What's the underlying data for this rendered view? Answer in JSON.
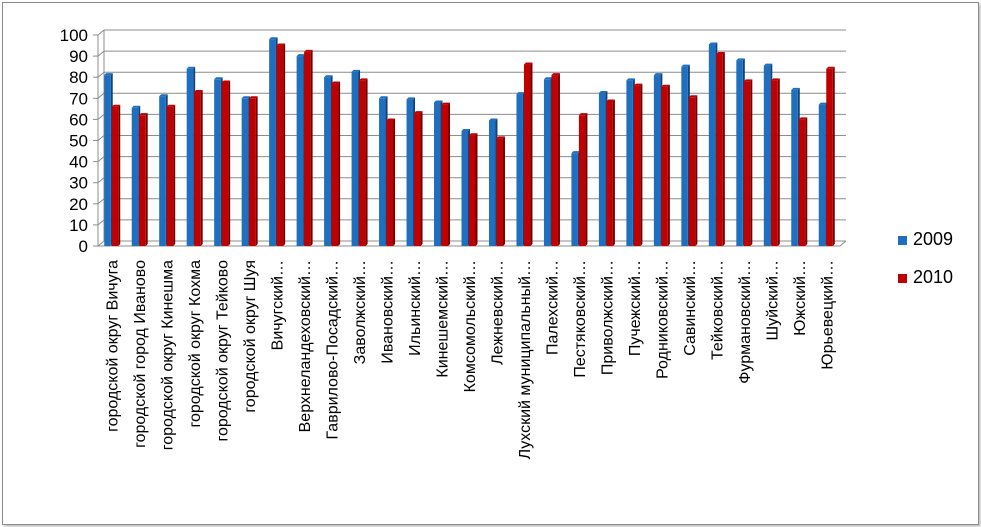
{
  "chart_data": {
    "type": "bar",
    "title": "",
    "xlabel": "",
    "ylabel": "",
    "ylim": [
      0,
      100
    ],
    "yticks": [
      0,
      10,
      20,
      30,
      40,
      50,
      60,
      70,
      80,
      90,
      100
    ],
    "grid": true,
    "legend_position": "right",
    "categories": [
      "городской округ Вичуга",
      "городской город Иваново",
      "городской округ Кинешма",
      "городской округ Кохма",
      "городской округ Тейково",
      "городской округ Шуя",
      "Вичугский…",
      "Верхнеландеховский…",
      "Гаврилово-Посадский…",
      "Заволжский…",
      "Ивановский…",
      "Ильинский…",
      "Кинешемский…",
      "Комсомольский…",
      "Лежневский…",
      "Лухский муниципальный…",
      "Палехский…",
      "Пестяковский…",
      "Приволжский…",
      "Пучежский…",
      "Родниковский…",
      "Савинский…",
      "Тейковский…",
      "Фурмановский…",
      "Шуйский…",
      "Южский…",
      "Юрьевецкий…"
    ],
    "series": [
      {
        "name": "2009",
        "color": "#1f6fc1",
        "values": [
          81,
          65.5,
          71,
          84,
          79,
          70,
          98,
          90,
          80,
          82.5,
          70,
          69.5,
          68,
          54.5,
          59.5,
          72,
          79,
          44,
          72.5,
          78.5,
          81,
          85,
          95.5,
          88,
          85.5,
          74,
          67
        ]
      },
      {
        "name": "2010",
        "color": "#c00000",
        "values": [
          66,
          62,
          66,
          73,
          77.5,
          70,
          95,
          92,
          77,
          78.5,
          59.5,
          63,
          67,
          52.5,
          51,
          86,
          81,
          62,
          68.5,
          76,
          75.5,
          70.5,
          91,
          78,
          78.5,
          60,
          84
        ]
      }
    ]
  }
}
